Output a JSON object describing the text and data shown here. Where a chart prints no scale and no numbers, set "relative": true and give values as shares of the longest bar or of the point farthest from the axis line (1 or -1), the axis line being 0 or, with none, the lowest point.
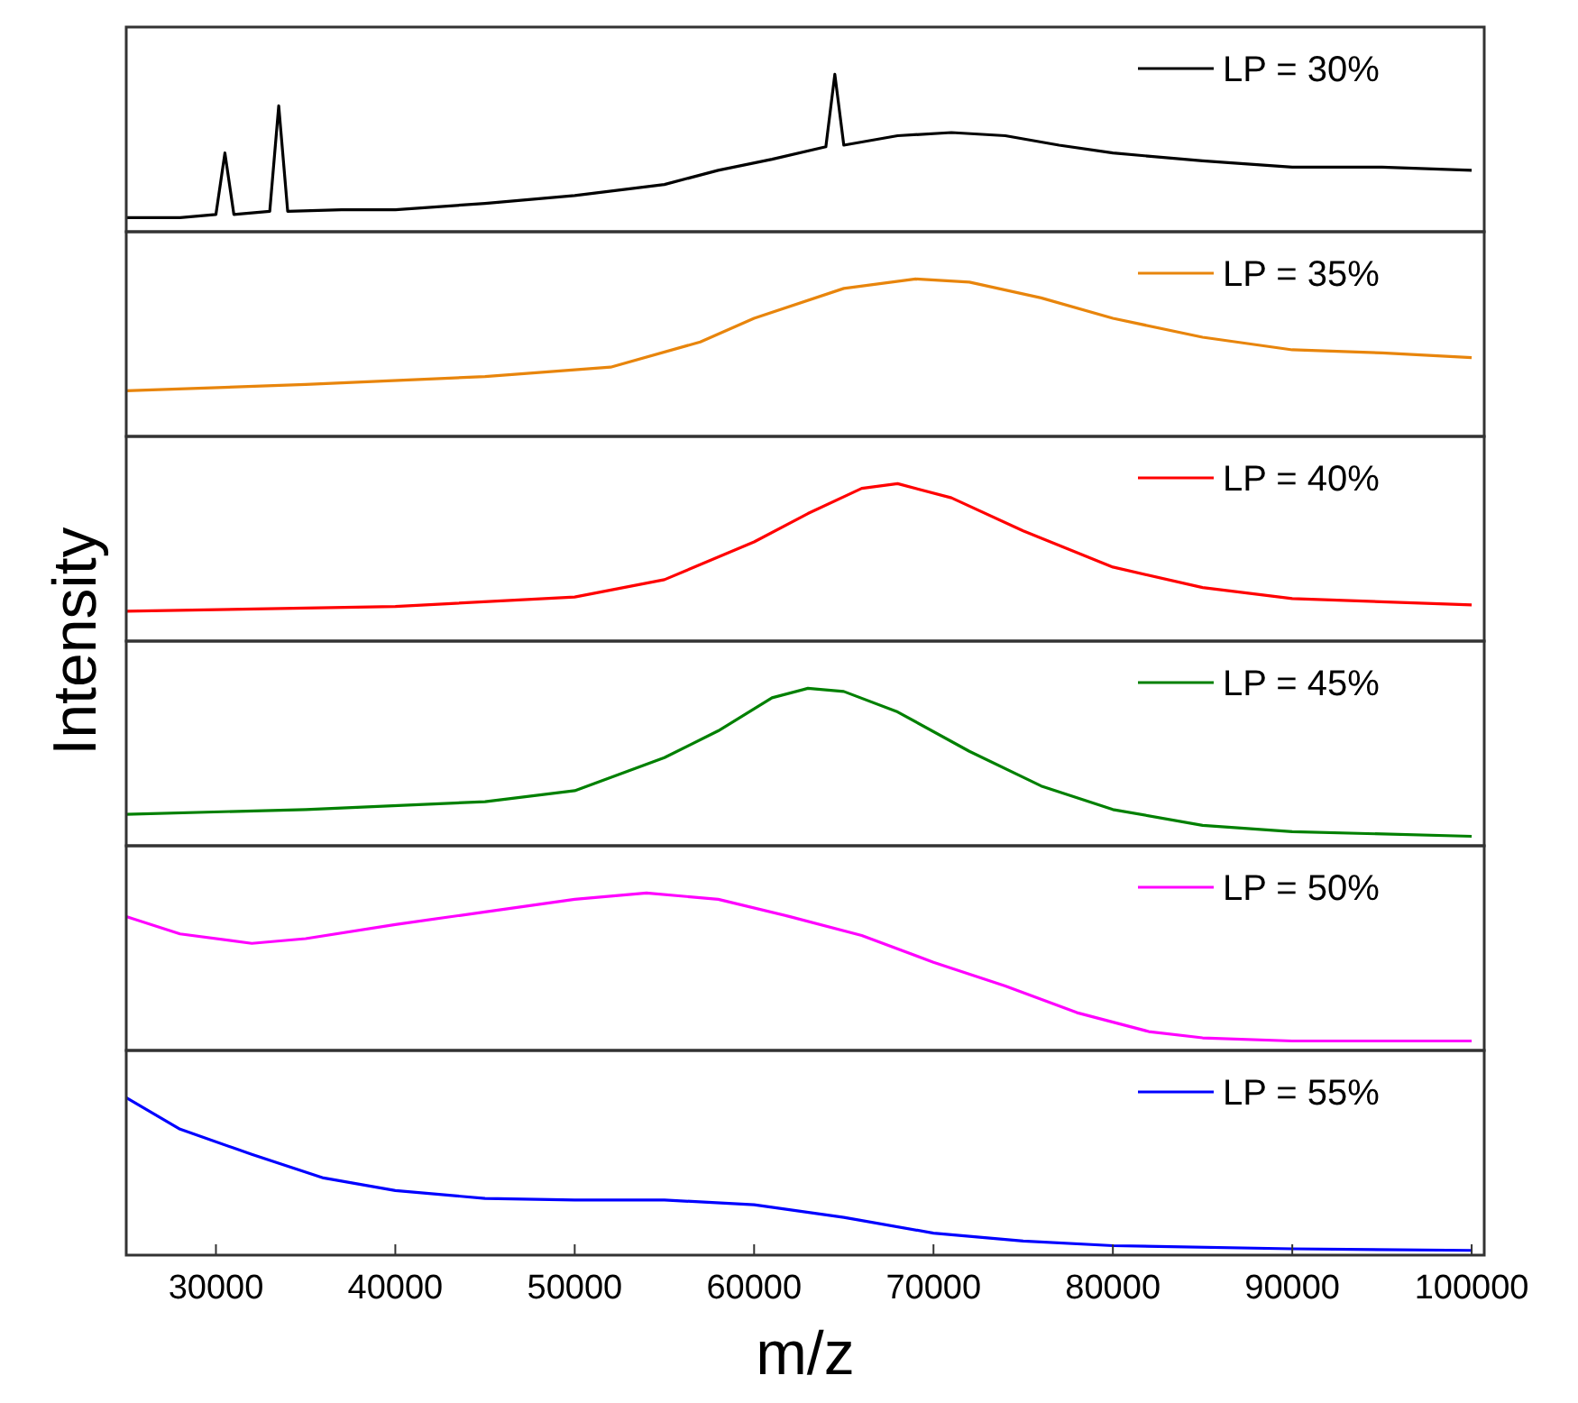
{
  "chart_data": [
    {
      "type": "line",
      "relative": true,
      "xlim": [
        25000,
        100700
      ],
      "tick_labels": false,
      "legend": "top right",
      "series": [
        {
          "name": "LP = 30%",
          "color": "#000000",
          "x": [
            25000,
            28000,
            30000,
            30500,
            31000,
            33000,
            33500,
            34000,
            37000,
            40000,
            45000,
            50000,
            55000,
            58000,
            61000,
            64000,
            64500,
            65000,
            68000,
            71000,
            74000,
            77000,
            80000,
            85000,
            90000,
            95000,
            100000
          ],
          "values": [
            0.09,
            0.09,
            0.11,
            0.5,
            0.11,
            0.13,
            0.8,
            0.13,
            0.14,
            0.14,
            0.18,
            0.23,
            0.3,
            0.39,
            0.46,
            0.54,
            1,
            0.55,
            0.61,
            0.63,
            0.61,
            0.55,
            0.5,
            0.45,
            0.41,
            0.41,
            0.39
          ]
        }
      ]
    },
    {
      "type": "line",
      "relative": true,
      "xlim": [
        25000,
        100700
      ],
      "tick_labels": false,
      "legend": "top right",
      "series": [
        {
          "name": "LP = 35%",
          "color": "#e8850c",
          "x": [
            25000,
            35000,
            45000,
            52000,
            57000,
            60000,
            65000,
            69000,
            72000,
            76000,
            80000,
            85000,
            90000,
            95000,
            100000
          ],
          "values": [
            0.29,
            0.33,
            0.38,
            0.44,
            0.6,
            0.75,
            0.94,
            1,
            0.98,
            0.88,
            0.75,
            0.63,
            0.55,
            0.53,
            0.5
          ]
        }
      ]
    },
    {
      "type": "line",
      "relative": true,
      "xlim": [
        25000,
        100700
      ],
      "tick_labels": false,
      "legend": "top right",
      "ylabel": "Intensity",
      "series": [
        {
          "name": "LP = 40%",
          "color": "#ff0000",
          "x": [
            25000,
            40000,
            50000,
            55000,
            60000,
            63000,
            66000,
            68000,
            71000,
            75000,
            80000,
            85000,
            90000,
            100000
          ],
          "values": [
            0.19,
            0.22,
            0.28,
            0.39,
            0.63,
            0.81,
            0.97,
            1,
            0.91,
            0.7,
            0.47,
            0.34,
            0.27,
            0.23
          ]
        }
      ]
    },
    {
      "type": "line",
      "relative": true,
      "xlim": [
        25000,
        100700
      ],
      "tick_labels": false,
      "legend": "top right",
      "series": [
        {
          "name": "LP = 45%",
          "color": "#008000",
          "x": [
            25000,
            35000,
            45000,
            50000,
            55000,
            58000,
            61000,
            63000,
            65000,
            68000,
            72000,
            76000,
            80000,
            85000,
            90000,
            100000
          ],
          "values": [
            0.2,
            0.23,
            0.28,
            0.35,
            0.56,
            0.73,
            0.94,
            1,
            0.98,
            0.85,
            0.6,
            0.38,
            0.23,
            0.13,
            0.09,
            0.06
          ]
        }
      ]
    },
    {
      "type": "line",
      "relative": true,
      "xlim": [
        25000,
        100700
      ],
      "tick_labels": false,
      "legend": "top right",
      "series": [
        {
          "name": "LP = 50%",
          "color": "#ff00ff",
          "x": [
            25000,
            28000,
            32000,
            35000,
            40000,
            45000,
            50000,
            54000,
            58000,
            62000,
            66000,
            70000,
            74000,
            78000,
            82000,
            85000,
            90000,
            100000
          ],
          "values": [
            0.85,
            0.74,
            0.68,
            0.71,
            0.8,
            0.88,
            0.96,
            1,
            0.96,
            0.85,
            0.73,
            0.56,
            0.41,
            0.24,
            0.12,
            0.08,
            0.06,
            0.06
          ]
        }
      ]
    },
    {
      "type": "line",
      "relative": true,
      "xlim": [
        25000,
        100700
      ],
      "xticks": [
        30000,
        40000,
        50000,
        60000,
        70000,
        80000,
        90000,
        100000
      ],
      "xlabel": "m/z",
      "tick_labels": "x",
      "legend": "top right",
      "series": [
        {
          "name": "LP = 55%",
          "color": "#0000ff",
          "x": [
            25000,
            28000,
            32000,
            36000,
            40000,
            45000,
            50000,
            55000,
            60000,
            65000,
            70000,
            75000,
            80000,
            90000,
            100000
          ],
          "values": [
            1,
            0.8,
            0.64,
            0.49,
            0.41,
            0.36,
            0.35,
            0.35,
            0.32,
            0.24,
            0.14,
            0.09,
            0.06,
            0.04,
            0.03
          ]
        }
      ]
    }
  ]
}
